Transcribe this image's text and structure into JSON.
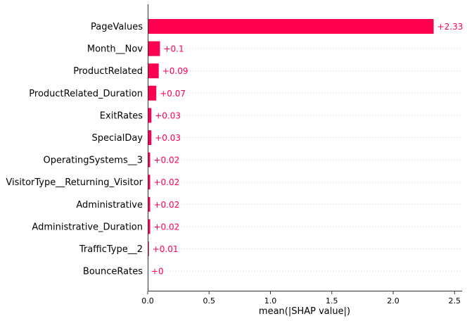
{
  "chart_data": {
    "type": "bar",
    "orientation": "horizontal",
    "categories": [
      "PageValues",
      "Month__Nov",
      "ProductRelated",
      "ProductRelated_Duration",
      "ExitRates",
      "SpecialDay",
      "OperatingSystems__3",
      "VisitorType__Returning_Visitor",
      "Administrative",
      "Administrative_Duration",
      "TrafficType__2",
      "BounceRates"
    ],
    "values": [
      2.33,
      0.1,
      0.09,
      0.07,
      0.03,
      0.03,
      0.02,
      0.02,
      0.02,
      0.02,
      0.01,
      0.0
    ],
    "value_labels": [
      "+2.33",
      "+0.1",
      "+0.09",
      "+0.07",
      "+0.03",
      "+0.03",
      "+0.02",
      "+0.02",
      "+0.02",
      "+0.02",
      "+0.01",
      "+0"
    ],
    "xlabel": "mean(|SHAP value|)",
    "xlim": [
      0,
      2.55
    ],
    "xticks": [
      0.0,
      0.5,
      1.0,
      1.5,
      2.0,
      2.5
    ],
    "xtick_labels": [
      "0.0",
      "0.5",
      "1.0",
      "1.5",
      "2.0",
      "2.5"
    ],
    "grid": "dotted horizontal guides per row",
    "bar_color": "#ff0051",
    "label_color": "#ff0051"
  }
}
